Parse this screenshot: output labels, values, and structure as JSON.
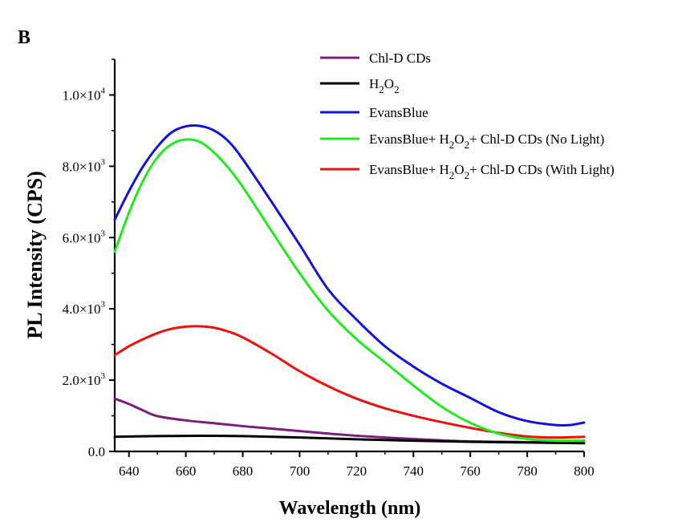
{
  "panel_label": "B",
  "chart_data": {
    "type": "line",
    "title": "",
    "xlabel": "Wavelength (nm)",
    "ylabel": "PL Intensity (CPS)",
    "xlim": [
      635,
      800
    ],
    "ylim": [
      0,
      11000
    ],
    "x_ticks": [
      640,
      660,
      680,
      700,
      720,
      740,
      760,
      780,
      800
    ],
    "y_ticks": [
      {
        "value": 0,
        "label": "0.0"
      },
      {
        "value": 2000,
        "mantissa": "2.0×10",
        "exponent": "3"
      },
      {
        "value": 4000,
        "mantissa": "4.0×10",
        "exponent": "3"
      },
      {
        "value": 6000,
        "mantissa": "6.0×10",
        "exponent": "3"
      },
      {
        "value": 8000,
        "mantissa": "8.0×10",
        "exponent": "3"
      },
      {
        "value": 10000,
        "mantissa": "1.0×10",
        "exponent": "4"
      }
    ],
    "legend_position": "top-right",
    "series": [
      {
        "name": "Chl-D CDs",
        "legend_parts": [
          [
            "Chl-D CDs",
            false
          ]
        ],
        "color": "#7b1e7a",
        "x": [
          635,
          640,
          645,
          650,
          660,
          670,
          680,
          690,
          700,
          710,
          720,
          730,
          740,
          750,
          760,
          770,
          780,
          790,
          800
        ],
        "y": [
          1480,
          1330,
          1150,
          990,
          870,
          790,
          710,
          640,
          570,
          500,
          440,
          390,
          350,
          310,
          280,
          270,
          260,
          260,
          300
        ]
      },
      {
        "name": "H2O2",
        "legend_parts": [
          [
            "H",
            false
          ],
          [
            "2",
            true
          ],
          [
            "O",
            false
          ],
          [
            "2",
            true
          ]
        ],
        "color": "#000000",
        "x": [
          635,
          650,
          665,
          680,
          700,
          720,
          740,
          760,
          780,
          800
        ],
        "y": [
          410,
          430,
          440,
          430,
          390,
          340,
          300,
          270,
          250,
          230
        ]
      },
      {
        "name": "EvansBlue",
        "legend_parts": [
          [
            "EvansBlue",
            false
          ]
        ],
        "color": "#1212d6",
        "x": [
          635,
          640,
          645,
          650,
          655,
          660,
          665,
          670,
          675,
          680,
          690,
          700,
          710,
          720,
          730,
          740,
          750,
          760,
          770,
          780,
          790,
          795,
          800
        ],
        "y": [
          6500,
          7300,
          8000,
          8550,
          8950,
          9120,
          9130,
          9000,
          8700,
          8200,
          7020,
          5800,
          4550,
          3700,
          2950,
          2380,
          1900,
          1500,
          1100,
          850,
          740,
          740,
          810
        ]
      },
      {
        "name": "EvansBlue+ H2O2+ Chl-D CDs (No Light)",
        "legend_parts": [
          [
            "EvansBlue+ H",
            false
          ],
          [
            "2",
            true
          ],
          [
            "O",
            false
          ],
          [
            "2",
            true
          ],
          [
            "+ Chl-D CDs (No Light)",
            false
          ]
        ],
        "color": "#22e81e",
        "x": [
          635,
          640,
          645,
          650,
          655,
          660,
          665,
          670,
          675,
          680,
          690,
          700,
          710,
          720,
          730,
          740,
          750,
          760,
          770,
          780,
          790,
          800
        ],
        "y": [
          5600,
          6700,
          7600,
          8250,
          8620,
          8750,
          8680,
          8380,
          7950,
          7420,
          6200,
          5000,
          3950,
          3150,
          2500,
          1850,
          1250,
          800,
          500,
          350,
          300,
          300
        ]
      },
      {
        "name": "EvansBlue+ H2O2+ Chl-D CDs (With Light)",
        "legend_parts": [
          [
            "EvansBlue+ H",
            false
          ],
          [
            "2",
            true
          ],
          [
            "O",
            false
          ],
          [
            "2",
            true
          ],
          [
            "+ Chl-D CDs (With Light)",
            false
          ]
        ],
        "color": "#e8120e",
        "x": [
          635,
          640,
          645,
          650,
          655,
          660,
          665,
          670,
          675,
          680,
          690,
          700,
          710,
          720,
          730,
          740,
          750,
          760,
          770,
          780,
          790,
          800
        ],
        "y": [
          2700,
          2950,
          3150,
          3320,
          3440,
          3500,
          3510,
          3470,
          3360,
          3200,
          2750,
          2250,
          1830,
          1480,
          1210,
          1000,
          820,
          660,
          520,
          420,
          390,
          410
        ]
      }
    ]
  }
}
